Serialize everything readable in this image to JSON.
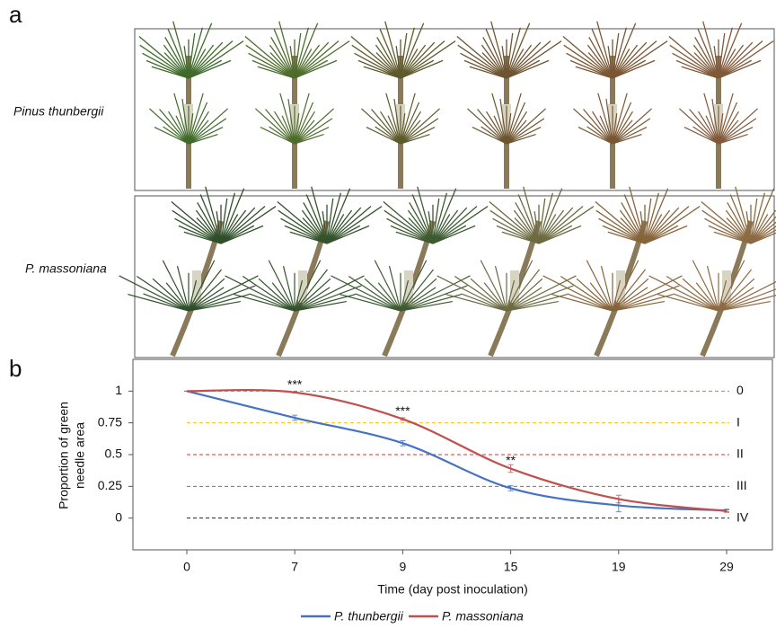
{
  "panel_a": {
    "label": "a",
    "rows": [
      "Pinus thunbergii",
      "P. massoniana"
    ]
  },
  "chart_data": {
    "type": "line",
    "panel_label": "b",
    "x_label": "Time (day post inoculation)",
    "y_label": [
      "Proportion of green",
      "needle area"
    ],
    "categories": [
      "0",
      "7",
      "9",
      "15",
      "19",
      "29"
    ],
    "ylim": [
      -0.25,
      1.25
    ],
    "yticks": [
      0,
      0.25,
      0.5,
      0.75,
      1
    ],
    "series": [
      {
        "name": "P. thunbergii",
        "color": "#4472c4",
        "values": [
          1,
          0.79,
          0.59,
          0.235,
          0.1,
          0.06
        ],
        "errors": [
          0,
          0.02,
          0.02,
          0.02,
          0.05,
          0.01
        ]
      },
      {
        "name": "P. massoniana",
        "color": "#c0504d",
        "values": [
          1,
          0.99,
          0.78,
          0.39,
          0.15,
          0.055
        ],
        "errors": [
          0,
          0.005,
          0.01,
          0.03,
          0.03,
          0.01
        ]
      }
    ],
    "annotations": [
      {
        "text": "***",
        "category": 1
      },
      {
        "text": "***",
        "category": 2
      },
      {
        "text": "**",
        "category": 3
      }
    ],
    "levels": [
      {
        "label": "0",
        "value": 1,
        "color": "#70ad47"
      },
      {
        "label": "I",
        "value": 0.75,
        "color": "#ffc000"
      },
      {
        "label": "II",
        "value": 0.5,
        "color": "#e03030"
      },
      {
        "label": "III",
        "value": 0.25,
        "color": "#c0504d"
      },
      {
        "label": "IV",
        "value": 0,
        "color": "#222222"
      }
    ],
    "legend": "bottom"
  }
}
